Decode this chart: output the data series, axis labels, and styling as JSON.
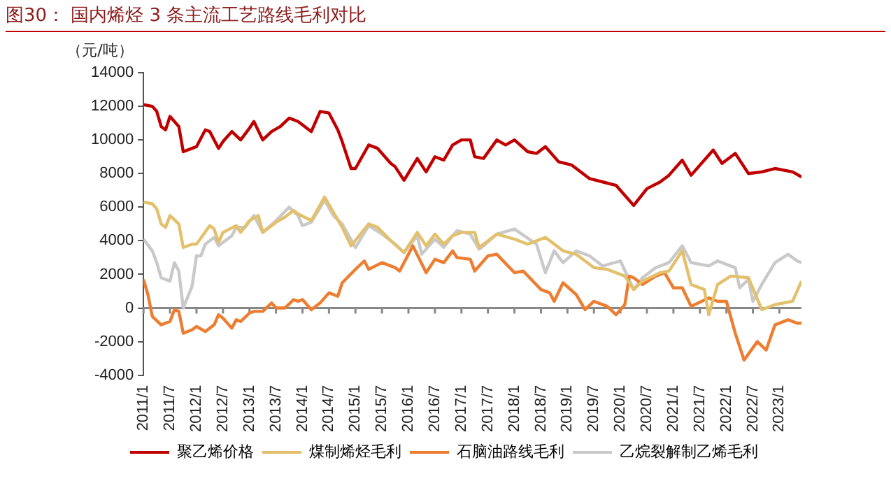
{
  "chart_data": {
    "type": "line",
    "title": "图30： 国内烯烃 3 条主流工艺路线毛利对比",
    "ylabel": "（元/吨）",
    "xlim": [
      "2011-01",
      "2023-06"
    ],
    "xticks": [
      {
        "value": "2011-01",
        "label": "2011/1"
      },
      {
        "value": "2011-07",
        "label": "2011/7"
      },
      {
        "value": "2012-01",
        "label": "2012/1"
      },
      {
        "value": "2012-07",
        "label": "2012/7"
      },
      {
        "value": "2013-01",
        "label": "2013/1"
      },
      {
        "value": "2013-07",
        "label": "2013/7"
      },
      {
        "value": "2014-01",
        "label": "2014/1"
      },
      {
        "value": "2014-07",
        "label": "2014/7"
      },
      {
        "value": "2015-01",
        "label": "2015/1"
      },
      {
        "value": "2015-07",
        "label": "2015/7"
      },
      {
        "value": "2016-01",
        "label": "2016/1"
      },
      {
        "value": "2016-07",
        "label": "2016/7"
      },
      {
        "value": "2017-01",
        "label": "2017/1"
      },
      {
        "value": "2017-07",
        "label": "2017/7"
      },
      {
        "value": "2018-01",
        "label": "2018/1"
      },
      {
        "value": "2018-07",
        "label": "2018/7"
      },
      {
        "value": "2019-01",
        "label": "2019/1"
      },
      {
        "value": "2019-07",
        "label": "2019/7"
      },
      {
        "value": "2020-01",
        "label": "2020/1"
      },
      {
        "value": "2020-07",
        "label": "2020/7"
      },
      {
        "value": "2021-01",
        "label": "2021/1"
      },
      {
        "value": "2021-07",
        "label": "2021/7"
      },
      {
        "value": "2022-01",
        "label": "2022/1"
      },
      {
        "value": "2022-07",
        "label": "2022/7"
      },
      {
        "value": "2023-01",
        "label": "2023/1"
      }
    ],
    "ylim": [
      -4000,
      14000
    ],
    "yticks": [
      -4000,
      -2000,
      0,
      2000,
      4000,
      6000,
      8000,
      10000,
      12000,
      14000
    ],
    "grid": false,
    "ref_lines": [
      {
        "axis": "y",
        "value": 0,
        "color": "#888888"
      }
    ],
    "legend": "bottom",
    "marker": "none",
    "line_style": "solid",
    "series": [
      {
        "name": "聚乙烯价格",
        "color": "#c00000",
        "x": [
          "2011-01",
          "2011-03",
          "2011-04",
          "2011-05",
          "2011-06",
          "2011-07",
          "2011-09",
          "2011-10",
          "2011-12",
          "2012-01",
          "2012-03",
          "2012-04",
          "2012-06",
          "2012-07",
          "2012-09",
          "2012-11",
          "2013-01",
          "2013-02",
          "2013-04",
          "2013-06",
          "2013-08",
          "2013-10",
          "2013-12",
          "2014-03",
          "2014-05",
          "2014-07",
          "2014-09",
          "2014-10",
          "2014-12",
          "2015-01",
          "2015-04",
          "2015-06",
          "2015-09",
          "2015-10",
          "2015-12",
          "2016-03",
          "2016-05",
          "2016-07",
          "2016-09",
          "2016-11",
          "2017-01",
          "2017-03",
          "2017-04",
          "2017-06",
          "2017-09",
          "2017-11",
          "2018-01",
          "2018-04",
          "2018-06",
          "2018-08",
          "2018-11",
          "2019-02",
          "2019-06",
          "2019-09",
          "2019-12",
          "2020-04",
          "2020-07",
          "2020-10",
          "2020-12",
          "2021-03",
          "2021-05",
          "2021-10",
          "2021-12",
          "2022-03",
          "2022-06",
          "2022-09",
          "2022-12",
          "2023-04",
          "2023-06"
        ],
        "values": [
          12100,
          12000,
          11700,
          10800,
          10600,
          11400,
          10800,
          9300,
          9500,
          9600,
          10600,
          10500,
          9500,
          9900,
          10500,
          10000,
          10700,
          11100,
          10000,
          10500,
          10800,
          11300,
          11100,
          10500,
          11700,
          11600,
          10600,
          9900,
          8300,
          8300,
          9700,
          9500,
          8600,
          8400,
          7600,
          8900,
          8100,
          9000,
          8800,
          9700,
          10000,
          10000,
          9000,
          8900,
          10000,
          9700,
          10000,
          9300,
          9200,
          9600,
          8700,
          8500,
          7700,
          7500,
          7300,
          6100,
          7100,
          7500,
          7900,
          8800,
          7900,
          9400,
          8600,
          9200,
          8000,
          8100,
          8300,
          8100,
          7800
        ]
      },
      {
        "name": "煤制烯烃毛利",
        "color": "#e3c06c",
        "x": [
          "2011-01",
          "2011-03",
          "2011-04",
          "2011-05",
          "2011-06",
          "2011-07",
          "2011-09",
          "2011-10",
          "2011-12",
          "2012-01",
          "2012-04",
          "2012-05",
          "2012-06",
          "2012-07",
          "2012-10",
          "2012-11",
          "2013-01",
          "2013-03",
          "2013-04",
          "2013-07",
          "2013-09",
          "2013-11",
          "2013-12",
          "2014-03",
          "2014-06",
          "2014-08",
          "2014-10",
          "2014-12",
          "2015-04",
          "2015-06",
          "2015-09",
          "2015-12",
          "2016-03",
          "2016-05",
          "2016-07",
          "2016-09",
          "2016-11",
          "2017-01",
          "2017-04",
          "2017-05",
          "2017-07",
          "2017-09",
          "2018-01",
          "2018-04",
          "2018-08",
          "2018-12",
          "2019-03",
          "2019-07",
          "2019-10",
          "2020-02",
          "2020-04",
          "2020-06",
          "2020-10",
          "2020-12",
          "2021-03",
          "2021-05",
          "2021-08",
          "2021-09",
          "2021-11",
          "2022-02",
          "2022-06",
          "2022-09",
          "2022-12",
          "2023-04",
          "2023-06"
        ],
        "values": [
          6300,
          6200,
          5900,
          5000,
          4800,
          5500,
          5000,
          3600,
          3800,
          3800,
          4900,
          4700,
          3900,
          4500,
          4900,
          4500,
          5200,
          5500,
          4500,
          5100,
          5400,
          5800,
          5600,
          5200,
          6600,
          5700,
          4800,
          3700,
          5000,
          4800,
          4000,
          3300,
          4500,
          3700,
          4400,
          3800,
          4300,
          4500,
          4500,
          3600,
          4000,
          4400,
          4100,
          3800,
          4200,
          3400,
          3200,
          2400,
          2300,
          1900,
          1100,
          1600,
          2100,
          2200,
          3400,
          1400,
          1100,
          -400,
          1400,
          1900,
          1800,
          -100,
          200,
          400,
          1600
        ]
      },
      {
        "name": "石脑油路线毛利",
        "color": "#ed7d31",
        "x": [
          "2011-01",
          "2011-02",
          "2011-03",
          "2011-05",
          "2011-07",
          "2011-08",
          "2011-09",
          "2011-10",
          "2011-12",
          "2012-01",
          "2012-03",
          "2012-05",
          "2012-06",
          "2012-07",
          "2012-09",
          "2012-10",
          "2012-11",
          "2013-01",
          "2013-02",
          "2013-04",
          "2013-06",
          "2013-07",
          "2013-09",
          "2013-11",
          "2013-12",
          "2014-01",
          "2014-03",
          "2014-05",
          "2014-07",
          "2014-09",
          "2014-10",
          "2015-01",
          "2015-03",
          "2015-04",
          "2015-07",
          "2015-10",
          "2015-11",
          "2016-02",
          "2016-05",
          "2016-07",
          "2016-09",
          "2016-11",
          "2016-12",
          "2017-03",
          "2017-04",
          "2017-07",
          "2017-09",
          "2018-01",
          "2018-03",
          "2018-07",
          "2018-09",
          "2018-10",
          "2018-12",
          "2019-03",
          "2019-05",
          "2019-07",
          "2019-10",
          "2019-12",
          "2020-02",
          "2020-03",
          "2020-04",
          "2020-06",
          "2020-09",
          "2020-11",
          "2021-01",
          "2021-03",
          "2021-05",
          "2021-09",
          "2021-11",
          "2022-01",
          "2022-03",
          "2022-05",
          "2022-08",
          "2022-10",
          "2022-12",
          "2023-03",
          "2023-05",
          "2023-06"
        ],
        "values": [
          1700,
          800,
          -500,
          -1000,
          -800,
          -100,
          -200,
          -1500,
          -1300,
          -1100,
          -1400,
          -1000,
          -400,
          -600,
          -1200,
          -700,
          -800,
          -300,
          -200,
          -200,
          300,
          0,
          0,
          500,
          400,
          500,
          -100,
          300,
          900,
          700,
          1500,
          2300,
          2800,
          2300,
          2700,
          2400,
          2200,
          3700,
          2100,
          2900,
          2700,
          3400,
          3000,
          2900,
          2200,
          3100,
          3200,
          2100,
          2200,
          1100,
          900,
          400,
          1500,
          800,
          -100,
          400,
          100,
          -400,
          200,
          1900,
          1800,
          1400,
          1900,
          2100,
          1200,
          1200,
          100,
          600,
          400,
          400,
          -1500,
          -3100,
          -2000,
          -2500,
          -1000,
          -700,
          -900,
          -900
        ]
      },
      {
        "name": "乙烷裂解制乙烯毛利",
        "color": "#c9c9c9",
        "x": [
          "2011-01",
          "2011-03",
          "2011-04",
          "2011-05",
          "2011-07",
          "2011-08",
          "2011-09",
          "2011-10",
          "2011-12",
          "2012-01",
          "2012-02",
          "2012-03",
          "2012-05",
          "2012-06",
          "2012-09",
          "2012-10",
          "2012-12",
          "2013-02",
          "2013-04",
          "2013-07",
          "2013-10",
          "2013-12",
          "2014-01",
          "2014-03",
          "2014-06",
          "2014-08",
          "2014-10",
          "2015-01",
          "2015-04",
          "2015-07",
          "2015-10",
          "2015-12",
          "2016-03",
          "2016-04",
          "2016-07",
          "2016-09",
          "2016-11",
          "2016-12",
          "2017-03",
          "2017-05",
          "2017-06",
          "2017-09",
          "2018-01",
          "2018-06",
          "2018-08",
          "2018-10",
          "2018-12",
          "2019-03",
          "2019-06",
          "2019-09",
          "2020-01",
          "2020-04",
          "2020-06",
          "2020-09",
          "2020-12",
          "2021-03",
          "2021-05",
          "2021-09",
          "2021-11",
          "2022-03",
          "2022-04",
          "2022-06",
          "2022-07",
          "2022-09",
          "2022-12",
          "2023-03",
          "2023-05",
          "2023-06"
        ],
        "values": [
          4100,
          3400,
          2700,
          1800,
          1600,
          2700,
          2200,
          0,
          1300,
          3100,
          3100,
          3800,
          4200,
          3700,
          4300,
          4800,
          4800,
          5500,
          4500,
          5200,
          6000,
          5500,
          4900,
          5100,
          6400,
          5500,
          5000,
          3600,
          4900,
          4400,
          3800,
          3300,
          4300,
          3200,
          4100,
          3600,
          4300,
          4600,
          4400,
          3500,
          3700,
          4400,
          4700,
          3800,
          2100,
          3400,
          2700,
          3400,
          3100,
          2500,
          2800,
          1100,
          1800,
          2400,
          2700,
          3700,
          2700,
          2500,
          2800,
          2400,
          1200,
          1700,
          400,
          1400,
          2700,
          3200,
          2800,
          2700
        ]
      }
    ]
  }
}
